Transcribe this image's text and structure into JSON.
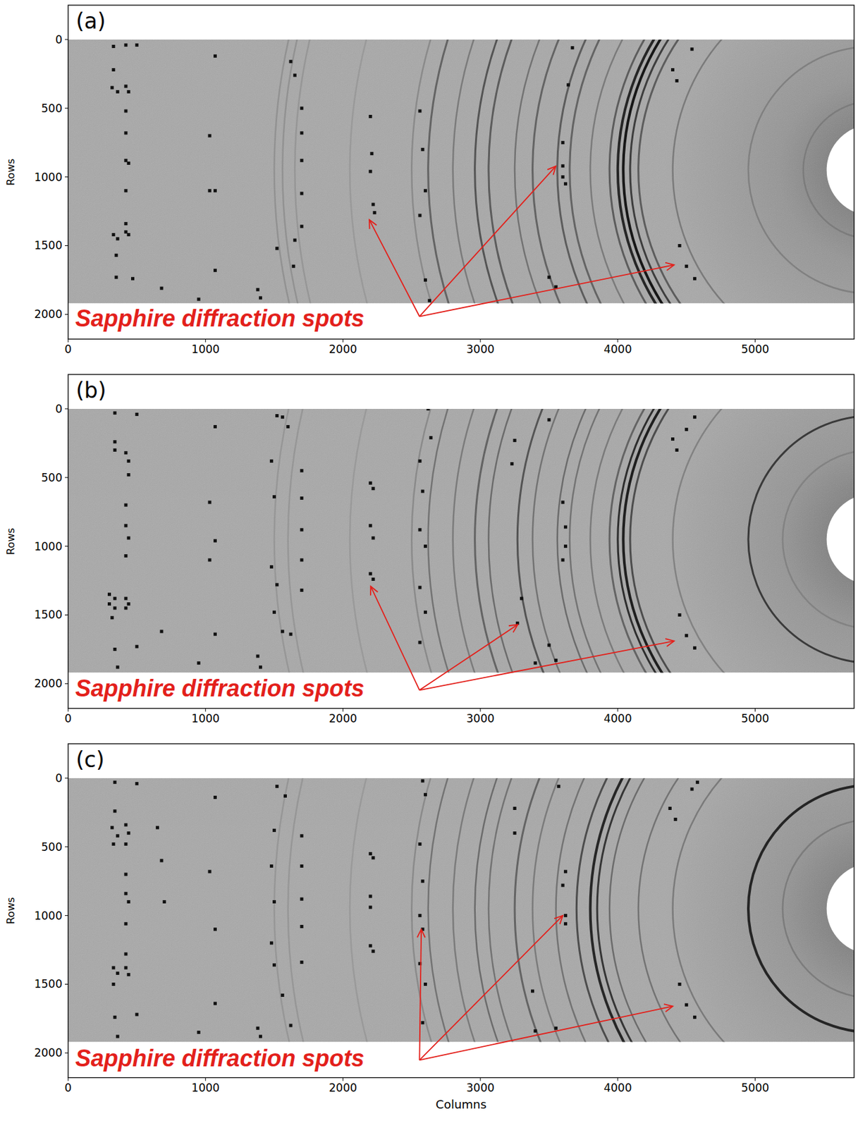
{
  "chart_data": [
    {
      "type": "image",
      "panel": "(a)",
      "ylabel": "Rows",
      "xlim": [
        0,
        5720
      ],
      "ylim": [
        -250,
        2180
      ],
      "xticks": [
        0,
        1000,
        2000,
        3000,
        4000,
        5000
      ],
      "yticks": [
        0,
        500,
        1000,
        1500,
        2000
      ],
      "image_extent": {
        "x": [
          0,
          5720
        ],
        "y": [
          0,
          1920
        ]
      },
      "beam_center": [
        5850,
        950
      ],
      "beam_stop_radius": 330,
      "rings": [
        {
          "radius": 4350,
          "intensity": 0.15
        },
        {
          "radius": 4290,
          "intensity": 0.15
        },
        {
          "radius": 4200,
          "intensity": 0.12
        },
        {
          "radius": 3800,
          "intensity": 0.1
        },
        {
          "radius": 3350,
          "intensity": 0.2
        },
        {
          "radius": 3230,
          "intensity": 0.45
        },
        {
          "radius": 3050,
          "intensity": 0.3
        },
        {
          "radius": 2890,
          "intensity": 0.55
        },
        {
          "radius": 2790,
          "intensity": 0.5
        },
        {
          "radius": 2600,
          "intensity": 0.35
        },
        {
          "radius": 2470,
          "intensity": 0.45
        },
        {
          "radius": 2290,
          "intensity": 0.5
        },
        {
          "radius": 2200,
          "intensity": 0.45
        },
        {
          "radius": 2050,
          "intensity": 0.3
        },
        {
          "radius": 1910,
          "intensity": 0.5
        },
        {
          "radius": 1850,
          "intensity": 0.85
        },
        {
          "radius": 1810,
          "intensity": 0.95
        },
        {
          "radius": 1760,
          "intensity": 0.7
        },
        {
          "radius": 1700,
          "intensity": 0.5
        },
        {
          "radius": 1450,
          "intensity": 0.3
        },
        {
          "radius": 900,
          "intensity": 0.2
        },
        {
          "radius": 500,
          "intensity": 0.15
        }
      ],
      "spots": [
        [
          330,
          50
        ],
        [
          420,
          40
        ],
        [
          500,
          40
        ],
        [
          330,
          220
        ],
        [
          320,
          350
        ],
        [
          360,
          380
        ],
        [
          420,
          340
        ],
        [
          440,
          380
        ],
        [
          420,
          520
        ],
        [
          420,
          680
        ],
        [
          420,
          880
        ],
        [
          440,
          900
        ],
        [
          420,
          1100
        ],
        [
          420,
          1340
        ],
        [
          330,
          1420
        ],
        [
          360,
          1450
        ],
        [
          420,
          1400
        ],
        [
          440,
          1420
        ],
        [
          350,
          1570
        ],
        [
          350,
          1730
        ],
        [
          470,
          1740
        ],
        [
          680,
          1810
        ],
        [
          950,
          1890
        ],
        [
          1070,
          120
        ],
        [
          1030,
          700
        ],
        [
          1070,
          1100
        ],
        [
          1030,
          1100
        ],
        [
          1070,
          1680
        ],
        [
          1380,
          1820
        ],
        [
          1400,
          1880
        ],
        [
          1620,
          160
        ],
        [
          1650,
          260
        ],
        [
          1700,
          500
        ],
        [
          1700,
          680
        ],
        [
          1700,
          880
        ],
        [
          1700,
          1120
        ],
        [
          1700,
          1360
        ],
        [
          1650,
          1460
        ],
        [
          1520,
          1520
        ],
        [
          1640,
          1650
        ],
        [
          2200,
          560
        ],
        [
          2210,
          830
        ],
        [
          2200,
          960
        ],
        [
          2220,
          1200
        ],
        [
          2230,
          1260
        ],
        [
          2560,
          520
        ],
        [
          2580,
          800
        ],
        [
          2600,
          1100
        ],
        [
          2560,
          1280
        ],
        [
          2600,
          1750
        ],
        [
          2630,
          1900
        ],
        [
          3600,
          750
        ],
        [
          3600,
          920
        ],
        [
          3620,
          1050
        ],
        [
          3600,
          1000
        ],
        [
          3500,
          1730
        ],
        [
          3550,
          1800
        ],
        [
          4400,
          220
        ],
        [
          4430,
          300
        ],
        [
          4540,
          70
        ],
        [
          4450,
          1500
        ],
        [
          4500,
          1650
        ],
        [
          4560,
          1740
        ],
        [
          3640,
          330
        ],
        [
          3670,
          60
        ]
      ],
      "annotation": {
        "text": "Sapphire diffraction spots",
        "color": "#e3201b",
        "xytext": [
          52,
          2042
        ],
        "arrow_from": [
          2557,
          2015
        ],
        "targets": [
          [
            2192,
            1312
          ],
          [
            3549,
            922
          ],
          [
            4410,
            1640
          ]
        ]
      }
    },
    {
      "type": "image",
      "panel": "(b)",
      "ylabel": "Rows",
      "xlim": [
        0,
        5720
      ],
      "ylim": [
        -250,
        2180
      ],
      "xticks": [
        0,
        1000,
        2000,
        3000,
        4000,
        5000
      ],
      "yticks": [
        0,
        500,
        1000,
        1500,
        2000
      ],
      "image_extent": {
        "x": [
          0,
          5720
        ],
        "y": [
          0,
          1920
        ]
      },
      "beam_center": [
        5850,
        950
      ],
      "beam_stop_radius": 330,
      "rings": [
        {
          "radius": 4350,
          "intensity": 0.12
        },
        {
          "radius": 4250,
          "intensity": 0.12
        },
        {
          "radius": 3800,
          "intensity": 0.1
        },
        {
          "radius": 3350,
          "intensity": 0.2
        },
        {
          "radius": 3230,
          "intensity": 0.35
        },
        {
          "radius": 3050,
          "intensity": 0.3
        },
        {
          "radius": 2890,
          "intensity": 0.45
        },
        {
          "radius": 2790,
          "intensity": 0.4
        },
        {
          "radius": 2580,
          "intensity": 0.55
        },
        {
          "radius": 2470,
          "intensity": 0.35
        },
        {
          "radius": 2290,
          "intensity": 0.4
        },
        {
          "radius": 2200,
          "intensity": 0.35
        },
        {
          "radius": 2050,
          "intensity": 0.3
        },
        {
          "radius": 1910,
          "intensity": 0.45
        },
        {
          "radius": 1850,
          "intensity": 0.8
        },
        {
          "radius": 1810,
          "intensity": 0.9
        },
        {
          "radius": 1760,
          "intensity": 0.6
        },
        {
          "radius": 1450,
          "intensity": 0.25
        },
        {
          "radius": 900,
          "intensity": 0.7
        },
        {
          "radius": 650,
          "intensity": 0.15
        }
      ],
      "spots": [
        [
          340,
          30
        ],
        [
          500,
          40
        ],
        [
          340,
          240
        ],
        [
          340,
          300
        ],
        [
          420,
          320
        ],
        [
          440,
          380
        ],
        [
          440,
          480
        ],
        [
          420,
          700
        ],
        [
          420,
          850
        ],
        [
          440,
          940
        ],
        [
          420,
          1070
        ],
        [
          300,
          1350
        ],
        [
          340,
          1380
        ],
        [
          300,
          1420
        ],
        [
          340,
          1450
        ],
        [
          420,
          1380
        ],
        [
          440,
          1420
        ],
        [
          420,
          1450
        ],
        [
          320,
          1520
        ],
        [
          340,
          1750
        ],
        [
          360,
          1880
        ],
        [
          500,
          1730
        ],
        [
          680,
          1620
        ],
        [
          950,
          1850
        ],
        [
          1070,
          130
        ],
        [
          1030,
          680
        ],
        [
          1070,
          960
        ],
        [
          1030,
          1100
        ],
        [
          1070,
          1640
        ],
        [
          1380,
          1800
        ],
        [
          1400,
          1880
        ],
        [
          1520,
          50
        ],
        [
          1560,
          60
        ],
        [
          1600,
          130
        ],
        [
          1480,
          380
        ],
        [
          1500,
          640
        ],
        [
          1480,
          1150
        ],
        [
          1520,
          1280
        ],
        [
          1500,
          1480
        ],
        [
          1560,
          1620
        ],
        [
          1620,
          1640
        ],
        [
          1700,
          450
        ],
        [
          1700,
          650
        ],
        [
          1700,
          880
        ],
        [
          1700,
          1100
        ],
        [
          1700,
          1320
        ],
        [
          2200,
          540
        ],
        [
          2220,
          580
        ],
        [
          2200,
          850
        ],
        [
          2220,
          940
        ],
        [
          2200,
          1200
        ],
        [
          2220,
          1240
        ],
        [
          2560,
          380
        ],
        [
          2580,
          600
        ],
        [
          2560,
          880
        ],
        [
          2600,
          1000
        ],
        [
          2560,
          1300
        ],
        [
          2600,
          1480
        ],
        [
          2560,
          1700
        ],
        [
          2620,
          0
        ],
        [
          2640,
          210
        ],
        [
          3270,
          1560
        ],
        [
          3300,
          1380
        ],
        [
          3230,
          400
        ],
        [
          3250,
          230
        ],
        [
          3500,
          80
        ],
        [
          3600,
          680
        ],
        [
          3620,
          860
        ],
        [
          3620,
          1000
        ],
        [
          3600,
          1100
        ],
        [
          3500,
          1720
        ],
        [
          3550,
          1830
        ],
        [
          3400,
          1850
        ],
        [
          4400,
          220
        ],
        [
          4430,
          300
        ],
        [
          4500,
          150
        ],
        [
          4560,
          60
        ],
        [
          4450,
          1500
        ],
        [
          4500,
          1650
        ],
        [
          4560,
          1740
        ]
      ],
      "annotation": {
        "text": "Sapphire diffraction spots",
        "color": "#e3201b",
        "xytext": [
          52,
          2047
        ],
        "arrow_from": [
          2557,
          2047
        ],
        "targets": [
          [
            2202,
            1292
          ],
          [
            3272,
            1570
          ],
          [
            4410,
            1690
          ]
        ]
      }
    },
    {
      "type": "image",
      "panel": "(c)",
      "xlabel": "Columns",
      "ylabel": "Rows",
      "xlim": [
        0,
        5720
      ],
      "ylim": [
        -250,
        2180
      ],
      "xticks": [
        0,
        1000,
        2000,
        3000,
        4000,
        5000
      ],
      "yticks": [
        0,
        500,
        1000,
        1500,
        2000
      ],
      "image_extent": {
        "x": [
          0,
          5720
        ],
        "y": [
          0,
          1920
        ]
      },
      "beam_center": [
        5850,
        950
      ],
      "beam_stop_radius": 330,
      "rings": [
        {
          "radius": 4350,
          "intensity": 0.12
        },
        {
          "radius": 4250,
          "intensity": 0.12
        },
        {
          "radius": 3800,
          "intensity": 0.1
        },
        {
          "radius": 3350,
          "intensity": 0.2
        },
        {
          "radius": 3230,
          "intensity": 0.35
        },
        {
          "radius": 3050,
          "intensity": 0.3
        },
        {
          "radius": 2890,
          "intensity": 0.4
        },
        {
          "radius": 2790,
          "intensity": 0.35
        },
        {
          "radius": 2600,
          "intensity": 0.45
        },
        {
          "radius": 2470,
          "intensity": 0.3
        },
        {
          "radius": 2300,
          "intensity": 0.35
        },
        {
          "radius": 2150,
          "intensity": 0.6
        },
        {
          "radius": 2050,
          "intensity": 0.85
        },
        {
          "radius": 2000,
          "intensity": 0.75
        },
        {
          "radius": 1910,
          "intensity": 0.4
        },
        {
          "radius": 1700,
          "intensity": 0.35
        },
        {
          "radius": 1450,
          "intensity": 0.3
        },
        {
          "radius": 900,
          "intensity": 0.85
        },
        {
          "radius": 650,
          "intensity": 0.2
        }
      ],
      "spots": [
        [
          340,
          30
        ],
        [
          500,
          40
        ],
        [
          340,
          240
        ],
        [
          320,
          360
        ],
        [
          360,
          420
        ],
        [
          330,
          480
        ],
        [
          420,
          340
        ],
        [
          440,
          400
        ],
        [
          420,
          480
        ],
        [
          420,
          700
        ],
        [
          420,
          840
        ],
        [
          440,
          900
        ],
        [
          420,
          1060
        ],
        [
          420,
          1280
        ],
        [
          330,
          1380
        ],
        [
          360,
          1420
        ],
        [
          420,
          1380
        ],
        [
          440,
          1430
        ],
        [
          330,
          1500
        ],
        [
          340,
          1740
        ],
        [
          360,
          1880
        ],
        [
          500,
          1720
        ],
        [
          650,
          360
        ],
        [
          680,
          600
        ],
        [
          700,
          900
        ],
        [
          950,
          1850
        ],
        [
          1070,
          140
        ],
        [
          1030,
          680
        ],
        [
          1070,
          1100
        ],
        [
          1070,
          1640
        ],
        [
          1380,
          1820
        ],
        [
          1400,
          1880
        ],
        [
          1520,
          60
        ],
        [
          1580,
          130
        ],
        [
          1500,
          380
        ],
        [
          1480,
          640
        ],
        [
          1500,
          900
        ],
        [
          1480,
          1200
        ],
        [
          1500,
          1360
        ],
        [
          1560,
          1580
        ],
        [
          1620,
          1800
        ],
        [
          1700,
          420
        ],
        [
          1700,
          640
        ],
        [
          1700,
          880
        ],
        [
          1700,
          1080
        ],
        [
          1700,
          1340
        ],
        [
          2200,
          550
        ],
        [
          2220,
          580
        ],
        [
          2200,
          860
        ],
        [
          2200,
          940
        ],
        [
          2200,
          1220
        ],
        [
          2220,
          1260
        ],
        [
          2580,
          20
        ],
        [
          2600,
          120
        ],
        [
          2560,
          480
        ],
        [
          2580,
          750
        ],
        [
          2560,
          1000
        ],
        [
          2580,
          1100
        ],
        [
          2560,
          1350
        ],
        [
          2600,
          1500
        ],
        [
          2580,
          1780
        ],
        [
          3250,
          220
        ],
        [
          3250,
          400
        ],
        [
          3380,
          1550
        ],
        [
          3400,
          1840
        ],
        [
          3570,
          60
        ],
        [
          3620,
          680
        ],
        [
          3600,
          780
        ],
        [
          3620,
          1000
        ],
        [
          3620,
          1060
        ],
        [
          3550,
          1820
        ],
        [
          4380,
          220
        ],
        [
          4420,
          300
        ],
        [
          4540,
          80
        ],
        [
          4580,
          30
        ],
        [
          4450,
          1500
        ],
        [
          4500,
          1650
        ],
        [
          4560,
          1740
        ]
      ],
      "annotation": {
        "text": "Sapphire diffraction spots",
        "color": "#e3201b",
        "xytext": [
          52,
          2052
        ],
        "arrow_from": [
          2557,
          2052
        ],
        "targets": [
          [
            2570,
            1100
          ],
          [
            3600,
            1000
          ],
          [
            4400,
            1660
          ]
        ]
      }
    }
  ]
}
